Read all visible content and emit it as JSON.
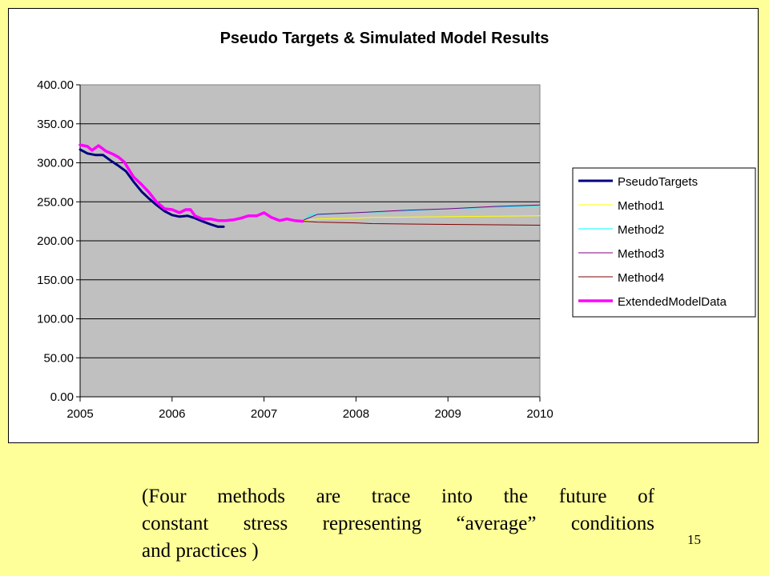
{
  "slide": {
    "caption_lines": [
      "(Four methods are trace into the future of",
      "constant stress representing “average” conditions",
      "and practices )"
    ],
    "page_number": "15",
    "background_color": "#FFFF99"
  },
  "chart_data": {
    "type": "line",
    "title": "Pseudo Targets & Simulated Model Results",
    "xlabel": "",
    "ylabel": "",
    "xlim": [
      2005,
      2010
    ],
    "ylim": [
      0,
      400
    ],
    "x_ticks": [
      "2005",
      "2006",
      "2007",
      "2008",
      "2009",
      "2010"
    ],
    "y_ticks": [
      "0.00",
      "50.00",
      "100.00",
      "150.00",
      "200.00",
      "250.00",
      "300.00",
      "350.00",
      "400.00"
    ],
    "plot_background": "#C0C0C0",
    "grid": true,
    "legend_position": "right",
    "series": [
      {
        "name": "PseudoTargets",
        "color": "#000080",
        "width": 3,
        "points": [
          [
            2005.0,
            317
          ],
          [
            2005.08,
            312
          ],
          [
            2005.17,
            310
          ],
          [
            2005.25,
            310
          ],
          [
            2005.33,
            303
          ],
          [
            2005.42,
            296
          ],
          [
            2005.5,
            289
          ],
          [
            2005.58,
            276
          ],
          [
            2005.67,
            263
          ],
          [
            2005.75,
            254
          ],
          [
            2005.83,
            246
          ],
          [
            2005.92,
            238
          ],
          [
            2006.0,
            233
          ],
          [
            2006.08,
            231
          ],
          [
            2006.17,
            232
          ],
          [
            2006.25,
            229
          ],
          [
            2006.33,
            225
          ],
          [
            2006.42,
            221
          ],
          [
            2006.5,
            218
          ],
          [
            2006.56,
            218
          ]
        ]
      },
      {
        "name": "Method1",
        "color": "#FFFF00",
        "width": 1,
        "points": [
          [
            2007.42,
            226
          ],
          [
            2007.58,
            228
          ],
          [
            2008.0,
            229
          ],
          [
            2008.17,
            230
          ],
          [
            2009.0,
            231
          ],
          [
            2010.0,
            232
          ]
        ]
      },
      {
        "name": "Method2",
        "color": "#00FFFF",
        "width": 1,
        "points": [
          [
            2007.42,
            226
          ],
          [
            2007.5,
            233
          ],
          [
            2007.67,
            234
          ],
          [
            2008.0,
            236
          ],
          [
            2008.5,
            238
          ],
          [
            2009.0,
            241
          ],
          [
            2009.5,
            243
          ],
          [
            2010.0,
            245
          ]
        ]
      },
      {
        "name": "Method3",
        "color": "#800080",
        "width": 1,
        "points": [
          [
            2007.42,
            226
          ],
          [
            2007.58,
            234
          ],
          [
            2008.0,
            236
          ],
          [
            2008.5,
            239
          ],
          [
            2009.0,
            241
          ],
          [
            2009.5,
            244
          ],
          [
            2010.0,
            246
          ]
        ]
      },
      {
        "name": "Method4",
        "color": "#800000",
        "width": 1,
        "points": [
          [
            2007.42,
            225
          ],
          [
            2007.58,
            224
          ],
          [
            2008.0,
            223
          ],
          [
            2008.17,
            222
          ],
          [
            2009.0,
            221
          ],
          [
            2010.0,
            220
          ]
        ]
      },
      {
        "name": "ExtendedModelData",
        "color": "#FF00FF",
        "width": 3.5,
        "points": [
          [
            2005.0,
            323
          ],
          [
            2005.08,
            321
          ],
          [
            2005.13,
            316
          ],
          [
            2005.2,
            322
          ],
          [
            2005.28,
            315
          ],
          [
            2005.36,
            311
          ],
          [
            2005.42,
            307
          ],
          [
            2005.48,
            301
          ],
          [
            2005.58,
            282
          ],
          [
            2005.67,
            272
          ],
          [
            2005.75,
            262
          ],
          [
            2005.83,
            250
          ],
          [
            2005.92,
            241
          ],
          [
            2006.0,
            240
          ],
          [
            2006.08,
            236
          ],
          [
            2006.15,
            240
          ],
          [
            2006.2,
            240
          ],
          [
            2006.25,
            232
          ],
          [
            2006.33,
            228
          ],
          [
            2006.42,
            228
          ],
          [
            2006.5,
            226
          ],
          [
            2006.58,
            226
          ],
          [
            2006.67,
            227
          ],
          [
            2006.75,
            229
          ],
          [
            2006.83,
            232
          ],
          [
            2006.92,
            232
          ],
          [
            2007.0,
            236
          ],
          [
            2007.08,
            230
          ],
          [
            2007.17,
            226
          ],
          [
            2007.25,
            228
          ],
          [
            2007.33,
            226
          ],
          [
            2007.42,
            225
          ]
        ]
      }
    ]
  }
}
